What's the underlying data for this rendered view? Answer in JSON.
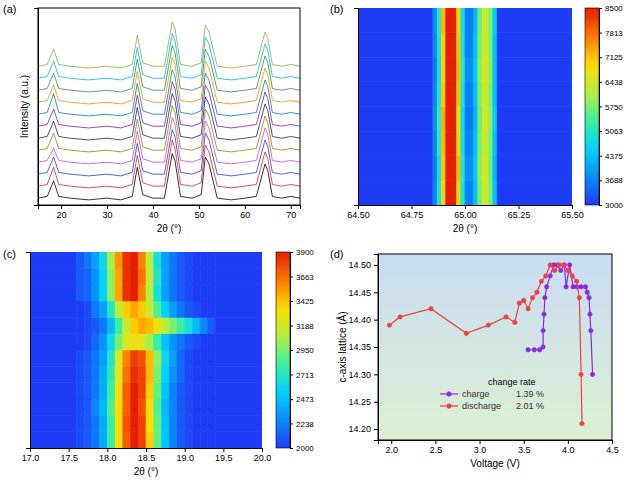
{
  "chart_data": [
    {
      "type": "line",
      "title": "(a)",
      "x_label": "2θ (°)",
      "y_label": "Intensity (a.u.)",
      "x": [
        15,
        17,
        18.4,
        19.5,
        22,
        26,
        30,
        33,
        35.5,
        36.6,
        37.8,
        40,
        42.5,
        44.2,
        44.8,
        46,
        48.5,
        50.5,
        51.4,
        52.2,
        54,
        57,
        60,
        62.5,
        64.4,
        65,
        66,
        68,
        70,
        72
      ],
      "xlim": [
        15,
        72
      ],
      "xticks": [
        20,
        30,
        40,
        50,
        60,
        70
      ],
      "ylim": [
        0,
        115
      ],
      "tick_labels": "x",
      "series": [
        {
          "color": "#000000",
          "values": [
            4,
            5,
            14,
            5,
            4,
            3,
            4,
            3,
            5,
            22,
            6,
            4,
            4,
            30,
            26,
            5,
            4,
            6,
            28,
            24,
            4,
            3,
            4,
            5,
            24,
            20,
            5,
            4,
            5,
            4
          ]
        },
        {
          "color": "#e8201e",
          "values": [
            11,
            12,
            22,
            12,
            11,
            10,
            11,
            10,
            12,
            29,
            13,
            11,
            11,
            38,
            33,
            12,
            11,
            13,
            35,
            31,
            11,
            10,
            11,
            12,
            31,
            27,
            12,
            11,
            12,
            11
          ]
        },
        {
          "color": "#1f3fd8",
          "values": [
            18,
            19,
            28,
            19,
            18,
            17,
            18,
            17,
            19,
            36,
            20,
            18,
            18,
            44,
            40,
            19,
            18,
            20,
            42,
            38,
            18,
            17,
            18,
            19,
            38,
            34,
            19,
            18,
            19,
            18
          ]
        },
        {
          "color": "#e040c0",
          "values": [
            25,
            26,
            33,
            26,
            25,
            24,
            25,
            24,
            26,
            43,
            27,
            25,
            25,
            51,
            47,
            26,
            25,
            27,
            49,
            45,
            25,
            24,
            25,
            26,
            45,
            41,
            26,
            25,
            26,
            25
          ]
        },
        {
          "color": "#8a8a00",
          "values": [
            32,
            33,
            42,
            33,
            32,
            31,
            32,
            31,
            33,
            50,
            34,
            32,
            32,
            58,
            54,
            33,
            32,
            34,
            56,
            52,
            32,
            31,
            32,
            33,
            52,
            48,
            33,
            32,
            33,
            32
          ]
        },
        {
          "color": "#1a237e",
          "values": [
            39,
            40,
            49,
            40,
            39,
            38,
            39,
            38,
            40,
            57,
            41,
            39,
            39,
            65,
            61,
            40,
            39,
            41,
            63,
            59,
            39,
            38,
            39,
            40,
            59,
            55,
            40,
            39,
            40,
            39
          ]
        },
        {
          "color": "#7b1fa2",
          "values": [
            46,
            47,
            56,
            47,
            46,
            45,
            46,
            45,
            47,
            64,
            48,
            46,
            46,
            72,
            68,
            47,
            46,
            48,
            70,
            66,
            46,
            45,
            46,
            47,
            66,
            62,
            47,
            46,
            47,
            46
          ]
        },
        {
          "color": "#00838f",
          "values": [
            53,
            54,
            65,
            54,
            53,
            52,
            53,
            52,
            54,
            71,
            55,
            53,
            53,
            79,
            75,
            54,
            53,
            55,
            77,
            73,
            53,
            52,
            53,
            54,
            73,
            69,
            54,
            53,
            54,
            53
          ]
        },
        {
          "color": "#ff8c00",
          "values": [
            60,
            61,
            70,
            61,
            60,
            59,
            60,
            59,
            61,
            78,
            62,
            60,
            60,
            86,
            82,
            61,
            60,
            62,
            84,
            80,
            60,
            59,
            60,
            61,
            80,
            76,
            61,
            60,
            61,
            60
          ]
        },
        {
          "color": "#2e8b57",
          "values": [
            67,
            68,
            77,
            68,
            67,
            66,
            67,
            66,
            68,
            85,
            69,
            67,
            67,
            93,
            89,
            68,
            67,
            69,
            91,
            87,
            67,
            66,
            67,
            68,
            87,
            83,
            68,
            67,
            68,
            67
          ]
        },
        {
          "color": "#00bcd4",
          "values": [
            74,
            75,
            84,
            75,
            74,
            73,
            74,
            73,
            75,
            92,
            76,
            74,
            74,
            100,
            96,
            75,
            74,
            76,
            98,
            94,
            74,
            73,
            74,
            75,
            94,
            90,
            75,
            74,
            75,
            74
          ]
        },
        {
          "color": "#7cb342",
          "values": [
            81,
            82,
            91,
            82,
            81,
            80,
            81,
            80,
            82,
            99,
            83,
            81,
            81,
            107,
            103,
            82,
            81,
            83,
            105,
            101,
            81,
            80,
            81,
            82,
            101,
            97,
            82,
            81,
            82,
            81
          ]
        }
      ]
    },
    {
      "type": "heatmap",
      "title": "(b)",
      "x_label": "2θ (°)",
      "color": "jet",
      "tick_labels": "x",
      "x_bins": [
        64.5,
        64.85,
        64.87,
        64.89,
        64.91,
        64.96,
        64.98,
        65.0,
        65.04,
        65.06,
        65.08,
        65.11,
        65.13,
        65.15,
        65.5
      ],
      "xlim": [
        64.5,
        65.5
      ],
      "xticks": [
        {
          "value": 64.5,
          "label": "64.50"
        },
        {
          "value": 64.75,
          "label": "64.75"
        },
        {
          "value": 65,
          "label": "65.00"
        },
        {
          "value": 65.25,
          "label": "65.25"
        },
        {
          "value": 65.5,
          "label": "65.50"
        }
      ],
      "ylim": [
        0,
        8
      ],
      "cells": [
        [
          3000,
          3700,
          5000,
          7000,
          8500,
          7000,
          5000,
          3700,
          4400,
          5800,
          6400,
          5800,
          4400,
          3000
        ],
        [
          3000,
          3600,
          4900,
          7100,
          8500,
          7200,
          5100,
          3800,
          4500,
          5900,
          6500,
          5700,
          4300,
          3000
        ],
        [
          3000,
          3700,
          5100,
          7200,
          8500,
          7000,
          4900,
          3700,
          4400,
          5800,
          6300,
          5800,
          4400,
          3000
        ],
        [
          3000,
          3800,
          5200,
          7300,
          8500,
          6900,
          4800,
          3600,
          4300,
          5700,
          6400,
          5900,
          4500,
          3000
        ],
        [
          3000,
          3700,
          5000,
          7100,
          8500,
          7100,
          5000,
          3700,
          4400,
          5800,
          6400,
          5800,
          4400,
          3000
        ],
        [
          3000,
          3600,
          4900,
          7000,
          8500,
          7200,
          5200,
          3800,
          4500,
          5900,
          6500,
          5900,
          4400,
          3000
        ],
        [
          3000,
          3700,
          5000,
          7000,
          8500,
          7100,
          5000,
          3700,
          4400,
          5800,
          6400,
          5800,
          4400,
          3000
        ],
        [
          3000,
          3800,
          5100,
          7200,
          8500,
          7000,
          4900,
          3600,
          4300,
          5700,
          6300,
          5800,
          4500,
          3000
        ]
      ],
      "colorbar": {
        "range": [
          3000,
          8500
        ],
        "ticks": [
          3000,
          3688,
          4375,
          5063,
          5750,
          6438,
          7125,
          7813,
          8500
        ]
      }
    },
    {
      "type": "heatmap",
      "title": "(c)",
      "x_label": "2θ (°)",
      "color": "jet",
      "tick_labels": "x",
      "x_bins": [
        17.0,
        17.6,
        17.7,
        17.8,
        17.9,
        18.0,
        18.1,
        18.2,
        18.3,
        18.4,
        18.5,
        18.6,
        18.7,
        18.8,
        18.9,
        19.0,
        19.1,
        19.2,
        19.3,
        19.4,
        20.0
      ],
      "xlim": [
        17,
        20
      ],
      "xticks": [
        {
          "value": 17,
          "label": "17.0"
        },
        {
          "value": 17.5,
          "label": "17.5"
        },
        {
          "value": 18,
          "label": "18.0"
        },
        {
          "value": 18.5,
          "label": "18.5"
        },
        {
          "value": 19,
          "label": "19.0"
        },
        {
          "value": 19.5,
          "label": "19.5"
        },
        {
          "value": 20,
          "label": "20.0"
        }
      ],
      "ylim": [
        0,
        12
      ],
      "cells": [
        [
          2000,
          2050,
          2100,
          2200,
          2400,
          2800,
          3300,
          3700,
          3900,
          3800,
          3400,
          2900,
          2500,
          2250,
          2100,
          2050,
          2000,
          2000,
          2000,
          2000
        ],
        [
          2000,
          2050,
          2100,
          2200,
          2400,
          2800,
          3300,
          3750,
          3900,
          3800,
          3350,
          2900,
          2500,
          2250,
          2100,
          2050,
          2000,
          2000,
          2000,
          2000
        ],
        [
          2000,
          2050,
          2100,
          2250,
          2450,
          2850,
          3350,
          3700,
          3900,
          3750,
          3350,
          2850,
          2450,
          2250,
          2100,
          2050,
          2000,
          2000,
          2000,
          2000
        ],
        [
          2000,
          2050,
          2100,
          2200,
          2400,
          2800,
          3300,
          3700,
          3900,
          3800,
          3400,
          2900,
          2500,
          2250,
          2100,
          2050,
          2000,
          2000,
          2000,
          2000
        ],
        [
          2000,
          2050,
          2100,
          2200,
          2400,
          2750,
          3250,
          3650,
          3850,
          3800,
          3450,
          2950,
          2550,
          2300,
          2150,
          2050,
          2000,
          2000,
          2000,
          2000
        ],
        [
          2000,
          2050,
          2100,
          2200,
          2350,
          2700,
          3200,
          3600,
          3800,
          3750,
          3450,
          3000,
          2600,
          2350,
          2150,
          2050,
          2000,
          2000,
          2000,
          2000
        ],
        [
          2000,
          2000,
          2050,
          2150,
          2300,
          2600,
          2950,
          3200,
          3300,
          3250,
          3050,
          2800,
          2500,
          2300,
          2200,
          2100,
          2050,
          2000,
          2000,
          2000
        ],
        [
          2000,
          2000,
          2050,
          2100,
          2200,
          2450,
          2800,
          3150,
          3400,
          3500,
          3450,
          3300,
          3100,
          2950,
          2800,
          2650,
          2450,
          2250,
          2100,
          2000
        ],
        [
          2000,
          2000,
          2050,
          2200,
          2350,
          2700,
          3100,
          3400,
          3500,
          3400,
          3150,
          2850,
          2550,
          2350,
          2200,
          2100,
          2050,
          2000,
          2000,
          2000
        ],
        [
          2000,
          2100,
          2150,
          2300,
          2550,
          3000,
          3500,
          3850,
          3900,
          3600,
          3100,
          2650,
          2350,
          2200,
          2100,
          2050,
          2000,
          2000,
          2000,
          2000
        ],
        [
          2000,
          2100,
          2150,
          2300,
          2550,
          3000,
          3500,
          3850,
          3900,
          3650,
          3150,
          2700,
          2350,
          2200,
          2100,
          2050,
          2000,
          2000,
          2000,
          2000
        ],
        [
          2000,
          2100,
          2200,
          2350,
          2600,
          3050,
          3550,
          3850,
          3900,
          3600,
          3100,
          2650,
          2350,
          2200,
          2100,
          2050,
          2000,
          2000,
          2000,
          2000
        ]
      ],
      "colorbar": {
        "range": [
          2000,
          3900
        ],
        "ticks": [
          2000,
          2238,
          2473,
          2713,
          2950,
          3188,
          3425,
          3663,
          3900
        ]
      }
    },
    {
      "type": "line",
      "title": "(d)",
      "x_label": "Voltage (V)",
      "y_label": "c-axis lattice (Å)",
      "xlim": [
        1.85,
        4.5
      ],
      "xticks": [
        {
          "value": 2,
          "label": "2.0"
        },
        {
          "value": 2.5,
          "label": "2.5"
        },
        {
          "value": 3,
          "label": "3.0"
        },
        {
          "value": 3.5,
          "label": "3.5"
        },
        {
          "value": 4,
          "label": "4.0"
        },
        {
          "value": 4.5,
          "label": "4.5"
        }
      ],
      "ylim": [
        14.18,
        14.52
      ],
      "yticks": [
        {
          "value": 14.2,
          "label": "14.20"
        },
        {
          "value": 14.25,
          "label": "14.25"
        },
        {
          "value": 14.3,
          "label": "14.30"
        },
        {
          "value": 14.35,
          "label": "14.35"
        },
        {
          "value": 14.4,
          "label": "14.40"
        },
        {
          "value": 14.45,
          "label": "14.45"
        },
        {
          "value": 14.5,
          "label": "14.50"
        }
      ],
      "legend": "lower center",
      "annotations": [
        "change rate"
      ],
      "series": [
        {
          "name": "charge",
          "color": "#8a2be2",
          "marker": "circle",
          "line_style": "solid",
          "change_rate": {
            "value": 1.39,
            "label": "1.39 %"
          },
          "x": [
            3.55,
            3.62,
            3.68,
            3.72,
            3.72,
            3.73,
            3.74,
            3.76,
            3.8,
            3.84,
            3.88,
            3.92,
            3.96,
            3.98,
            4.02,
            4.06,
            4.1,
            4.15,
            4.2,
            4.22,
            4.24,
            4.25,
            4.26,
            4.28
          ],
          "values": [
            14.345,
            14.345,
            14.345,
            14.35,
            14.38,
            14.41,
            14.44,
            14.46,
            14.48,
            14.5,
            14.5,
            14.49,
            14.5,
            14.46,
            14.5,
            14.46,
            14.46,
            14.46,
            14.46,
            14.45,
            14.44,
            14.41,
            14.38,
            14.3
          ]
        },
        {
          "name": "discharge",
          "color": "#f04040",
          "marker": "circle",
          "line_style": "solid",
          "change_rate": {
            "value": 2.01,
            "label": "2.01 %"
          },
          "x": [
            1.98,
            2.1,
            2.45,
            2.85,
            3.1,
            3.3,
            3.4,
            3.45,
            3.5,
            3.55,
            3.6,
            3.65,
            3.7,
            3.75,
            3.8,
            3.85,
            3.9,
            3.95,
            4.0,
            4.05,
            4.1,
            4.13,
            4.15,
            4.16
          ],
          "values": [
            14.39,
            14.405,
            14.42,
            14.375,
            14.39,
            14.405,
            14.395,
            14.43,
            14.435,
            14.42,
            14.44,
            14.45,
            14.47,
            14.48,
            14.5,
            14.49,
            14.5,
            14.5,
            14.49,
            14.48,
            14.47,
            14.44,
            14.3,
            14.21
          ]
        }
      ]
    }
  ]
}
